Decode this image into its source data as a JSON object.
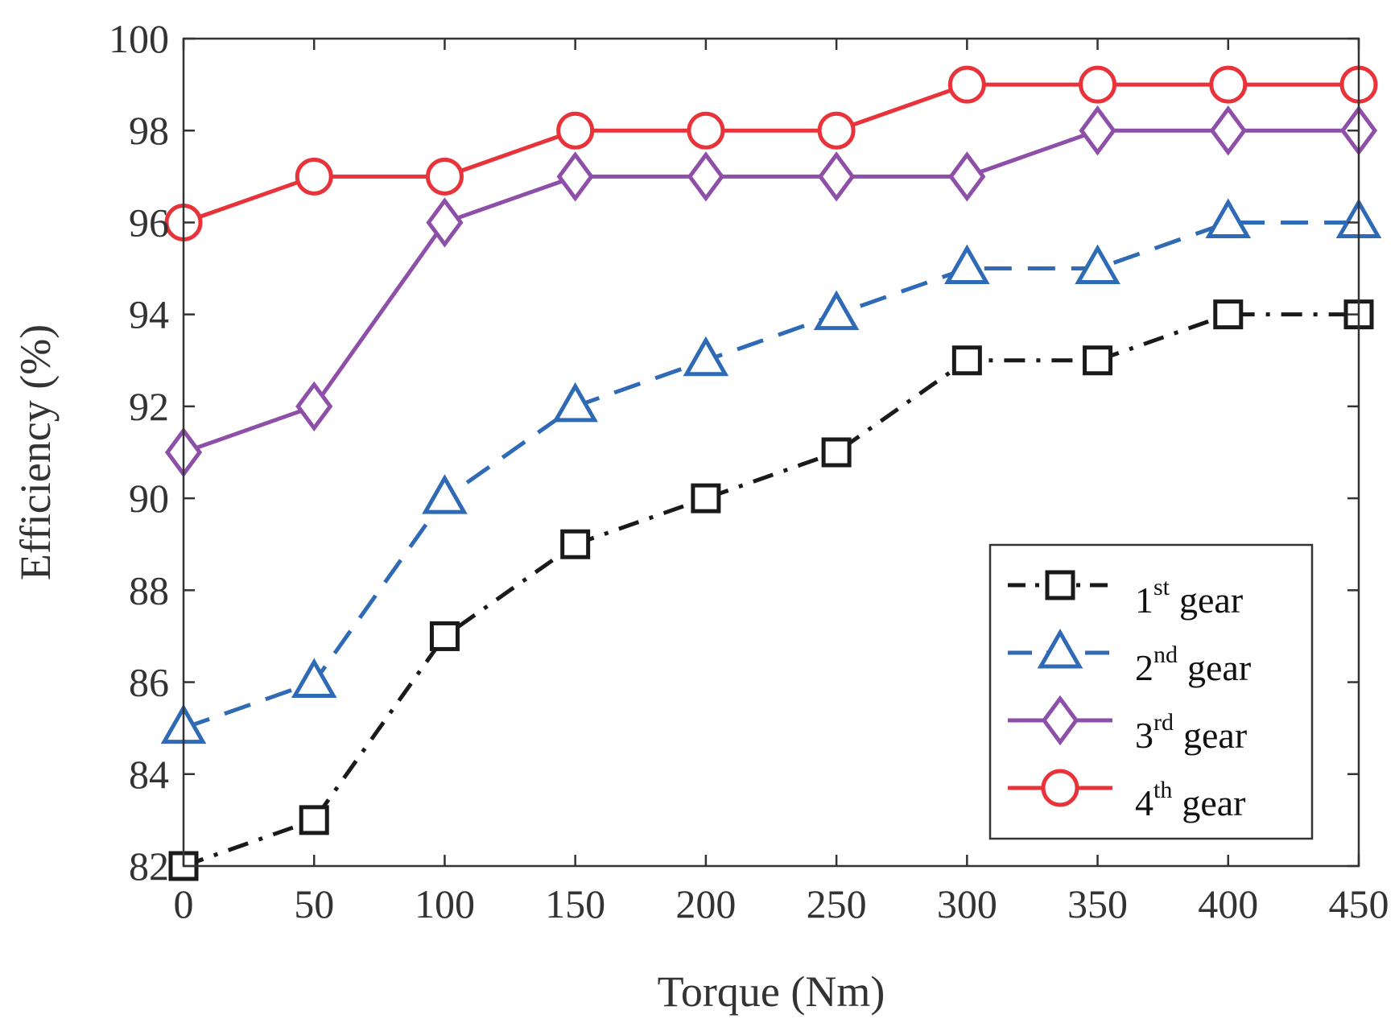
{
  "chart_data": {
    "type": "line",
    "title": "",
    "xlabel": "Torque (Nm)",
    "ylabel": "Efficiency (%)",
    "x": [
      0,
      50,
      100,
      150,
      200,
      250,
      300,
      350,
      400,
      450
    ],
    "xlim": [
      0,
      450
    ],
    "ylim": [
      82,
      100
    ],
    "xticks": [
      "0",
      "50",
      "100",
      "150",
      "200",
      "250",
      "300",
      "350",
      "400",
      "450"
    ],
    "yticks": [
      "82",
      "84",
      "86",
      "88",
      "90",
      "92",
      "94",
      "96",
      "98",
      "100"
    ],
    "grid": false,
    "legend_position": "bottom-right",
    "series": [
      {
        "name": "1st gear",
        "ordinal": "1",
        "sup": "st",
        "suffix": "gear",
        "color": "#1a1a1a",
        "marker": "square",
        "line_style": "dash-dot",
        "values": [
          82,
          83,
          87,
          89,
          90,
          91,
          93,
          93,
          94,
          94
        ]
      },
      {
        "name": "2nd gear",
        "ordinal": "2",
        "sup": "nd",
        "suffix": "gear",
        "color": "#2e6ab5",
        "marker": "triangle",
        "line_style": "dashed",
        "values": [
          85,
          86,
          90,
          92,
          93,
          94,
          95,
          95,
          96,
          96
        ]
      },
      {
        "name": "3rd gear",
        "ordinal": "3",
        "sup": "rd",
        "suffix": "gear",
        "color": "#8e4fa8",
        "marker": "diamond",
        "line_style": "solid",
        "values": [
          91,
          92,
          96,
          97,
          97,
          97,
          97,
          98,
          98,
          98
        ]
      },
      {
        "name": "4th gear",
        "ordinal": "4",
        "sup": "th",
        "suffix": "gear",
        "color": "#e8333a",
        "marker": "circle",
        "line_style": "solid",
        "values": [
          96,
          97,
          97,
          98,
          98,
          98,
          99,
          99,
          99,
          99
        ]
      }
    ]
  }
}
